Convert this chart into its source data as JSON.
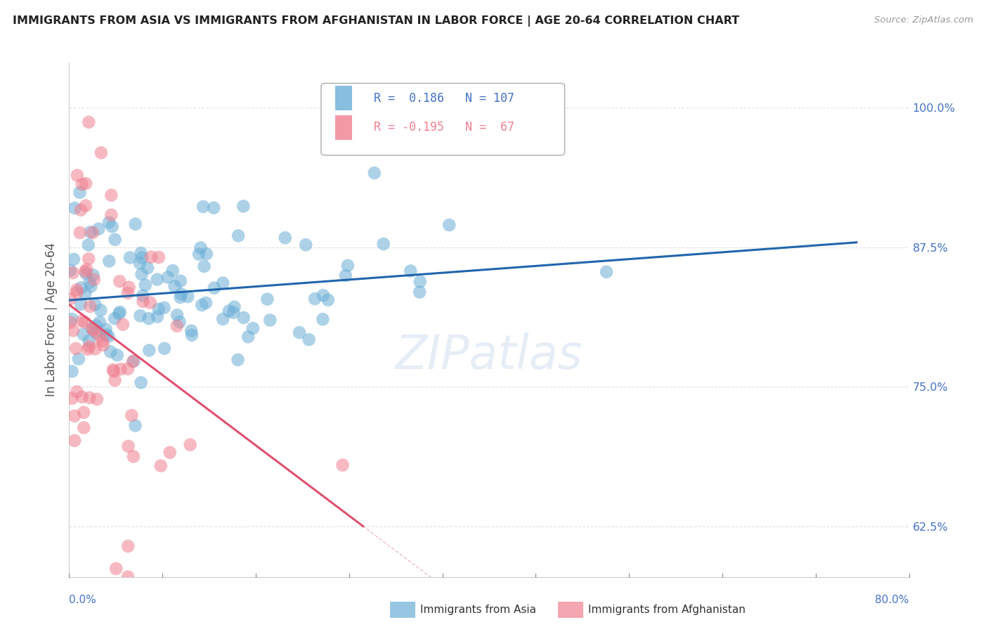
{
  "title": "IMMIGRANTS FROM ASIA VS IMMIGRANTS FROM AFGHANISTAN IN LABOR FORCE | AGE 20-64 CORRELATION CHART",
  "source": "Source: ZipAtlas.com",
  "ylabel": "In Labor Force | Age 20-64",
  "ytick_labels": [
    "62.5%",
    "75.0%",
    "87.5%",
    "100.0%"
  ],
  "ytick_values": [
    0.625,
    0.75,
    0.875,
    1.0
  ],
  "xlim": [
    0.0,
    0.8
  ],
  "ylim": [
    0.58,
    1.04
  ],
  "asia_color": "#6baed6",
  "afghanistan_color": "#f08090",
  "asia_line_color": "#2166ac",
  "afghanistan_line_color": "#e05070",
  "diagonal_color": "#e8b0b8",
  "asia_R": 0.186,
  "asia_N": 107,
  "afghanistan_R": -0.195,
  "afghanistan_N": 67,
  "watermark": "ZIPatlas",
  "background_color": "#ffffff",
  "grid_color": "#e0e0e0",
  "title_color": "#222222",
  "tick_label_color": "#4472c4"
}
